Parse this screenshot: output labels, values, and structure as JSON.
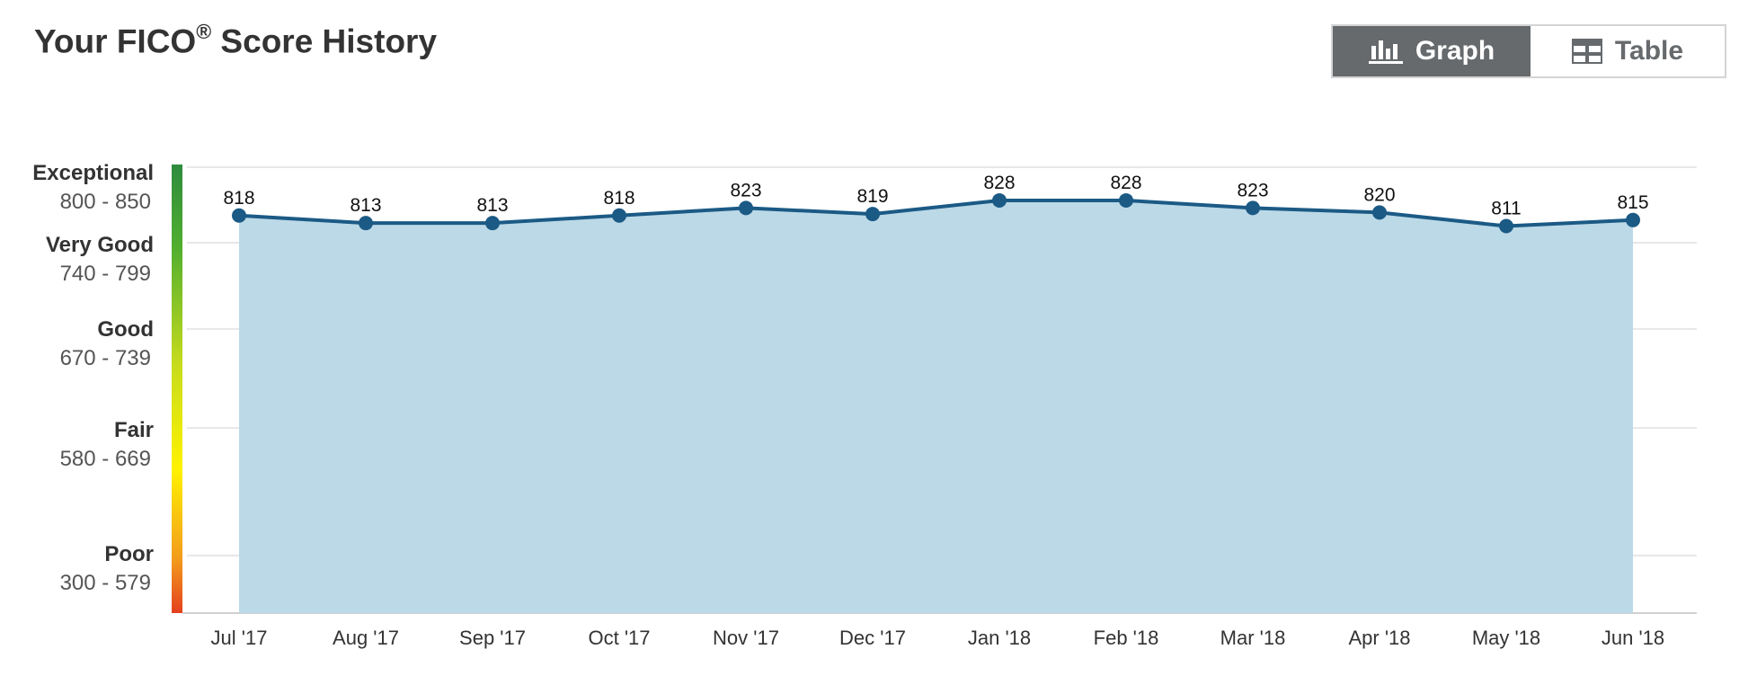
{
  "header": {
    "title_prefix": "Your FICO",
    "title_reg": "®",
    "title_suffix": " Score History"
  },
  "view_toggle": {
    "graph_label": "Graph",
    "table_label": "Table",
    "selected": "Graph"
  },
  "colors": {
    "line": "#1b5a85",
    "area": "#bcd9e7",
    "grid": "#e0e0e0",
    "toggle_active": "#666a6d"
  },
  "score_bands": [
    {
      "name": "Exceptional",
      "range": "800 - 850"
    },
    {
      "name": "Very Good",
      "range": "740 - 799"
    },
    {
      "name": "Good",
      "range": "670 - 739"
    },
    {
      "name": "Fair",
      "range": "580 - 669"
    },
    {
      "name": "Poor",
      "range": "300 - 579"
    }
  ],
  "chart_data": {
    "type": "area",
    "title": "Your FICO® Score History",
    "categories": [
      "Jul '17",
      "Aug '17",
      "Sep '17",
      "Oct '17",
      "Nov '17",
      "Dec '17",
      "Jan '18",
      "Feb '18",
      "Mar '18",
      "Apr '18",
      "May '18",
      "Jun '18"
    ],
    "series": [
      {
        "name": "FICO Score",
        "values": [
          818,
          813,
          813,
          818,
          823,
          819,
          828,
          828,
          823,
          820,
          811,
          815
        ]
      }
    ],
    "y_band_boundaries": [
      300,
      580,
      670,
      740,
      800,
      850
    ],
    "grid": true,
    "legend": "none"
  }
}
